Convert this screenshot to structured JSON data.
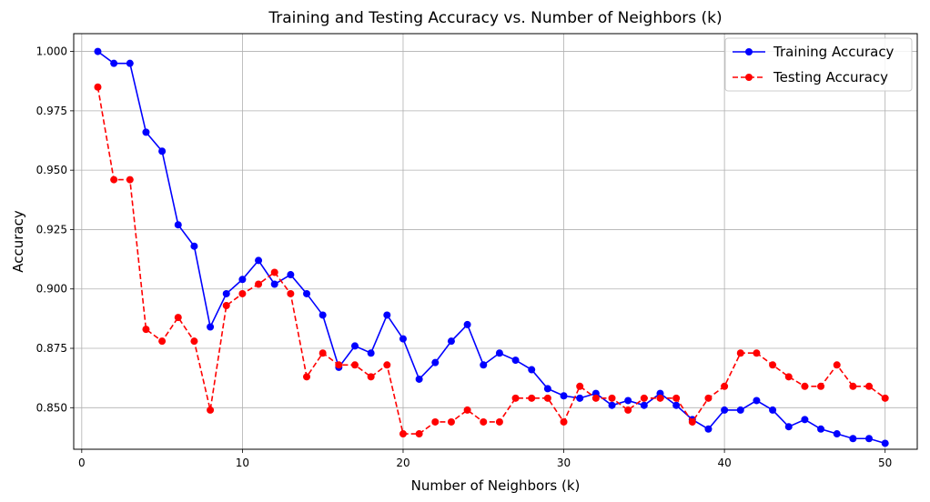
{
  "chart_data": {
    "type": "line",
    "title": "Training and Testing Accuracy vs. Number of Neighbors (k)",
    "xlabel": "Number of Neighbors (k)",
    "ylabel": "Accuracy",
    "xlim": [
      -0.5,
      52
    ],
    "ylim": [
      0.8325,
      1.0075
    ],
    "xticks": [
      0,
      10,
      20,
      30,
      40,
      50
    ],
    "xtick_labels": [
      "0",
      "10",
      "20",
      "30",
      "40",
      "50"
    ],
    "yticks": [
      0.85,
      0.875,
      0.9,
      0.925,
      0.95,
      0.975,
      1.0
    ],
    "ytick_labels": [
      "0.850",
      "0.875",
      "0.900",
      "0.925",
      "0.950",
      "0.975",
      "1.000"
    ],
    "grid": true,
    "legend": "top-right",
    "x": [
      1,
      2,
      3,
      4,
      5,
      6,
      7,
      8,
      9,
      10,
      11,
      12,
      13,
      14,
      15,
      16,
      17,
      18,
      19,
      20,
      21,
      22,
      23,
      24,
      25,
      26,
      27,
      28,
      29,
      30,
      31,
      32,
      33,
      34,
      35,
      36,
      37,
      38,
      39,
      40,
      41,
      42,
      43,
      44,
      45,
      46,
      47,
      48,
      49,
      50
    ],
    "series": [
      {
        "name": "Training Accuracy",
        "color": "#0000ff",
        "linestyle": "solid",
        "marker": "circle",
        "values": [
          1.0,
          0.995,
          0.995,
          0.966,
          0.958,
          0.927,
          0.918,
          0.884,
          0.898,
          0.904,
          0.912,
          0.902,
          0.906,
          0.898,
          0.889,
          0.867,
          0.876,
          0.873,
          0.889,
          0.879,
          0.862,
          0.869,
          0.878,
          0.885,
          0.868,
          0.873,
          0.87,
          0.866,
          0.858,
          0.855,
          0.854,
          0.856,
          0.851,
          0.853,
          0.851,
          0.856,
          0.851,
          0.845,
          0.841,
          0.849,
          0.849,
          0.853,
          0.849,
          0.842,
          0.845,
          0.841,
          0.839,
          0.837,
          0.837,
          0.835
        ]
      },
      {
        "name": "Testing Accuracy",
        "color": "#ff0000",
        "linestyle": "dashed",
        "marker": "circle",
        "values": [
          0.985,
          0.946,
          0.946,
          0.883,
          0.878,
          0.888,
          0.878,
          0.849,
          0.893,
          0.898,
          0.902,
          0.907,
          0.898,
          0.863,
          0.873,
          0.868,
          0.868,
          0.863,
          0.868,
          0.839,
          0.839,
          0.844,
          0.844,
          0.849,
          0.844,
          0.844,
          0.854,
          0.854,
          0.854,
          0.844,
          0.859,
          0.854,
          0.854,
          0.849,
          0.854,
          0.854,
          0.854,
          0.844,
          0.854,
          0.859,
          0.873,
          0.873,
          0.868,
          0.863,
          0.859,
          0.859,
          0.868,
          0.859,
          0.859,
          0.854
        ]
      }
    ]
  }
}
